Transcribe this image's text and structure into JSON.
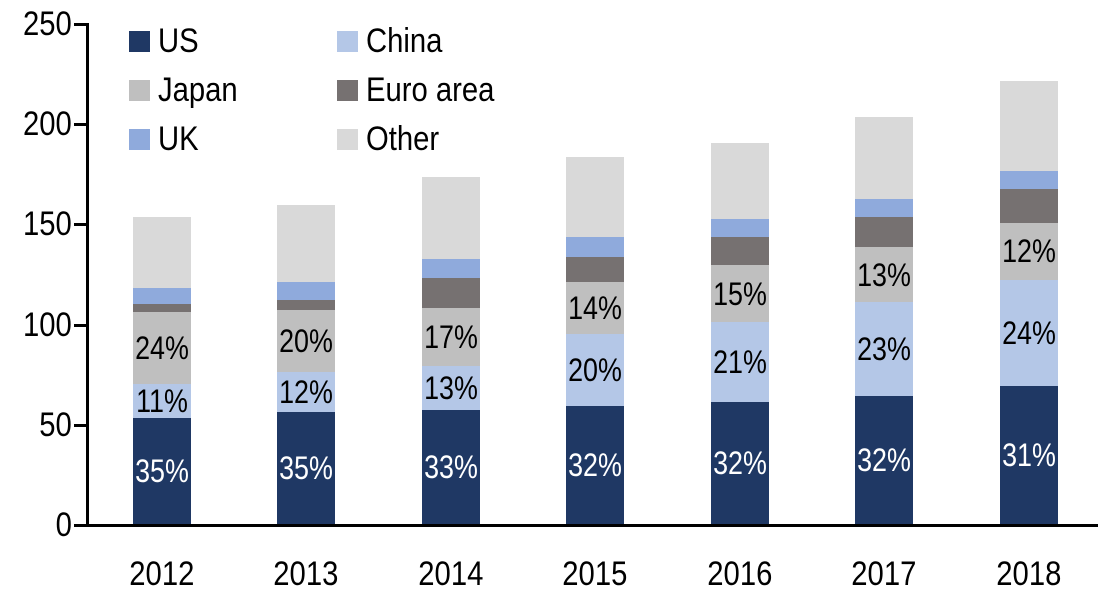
{
  "chart_data": {
    "type": "bar",
    "stacked": true,
    "title": "",
    "xlabel": "",
    "ylabel": "",
    "categories": [
      "2012",
      "2013",
      "2014",
      "2015",
      "2016",
      "2017",
      "2018"
    ],
    "series": [
      {
        "name": "US",
        "color": "#1f3864",
        "values": [
          53,
          56,
          57,
          59,
          61,
          64,
          69
        ],
        "labels": [
          "35%",
          "35%",
          "33%",
          "32%",
          "32%",
          "32%",
          "31%"
        ],
        "label_color": "#ffffff"
      },
      {
        "name": "China",
        "color": "#b4c7e7",
        "values": [
          17,
          20,
          22,
          36,
          40,
          47,
          53
        ],
        "labels": [
          "11%",
          "12%",
          "13%",
          "20%",
          "21%",
          "23%",
          "24%"
        ],
        "label_color": "#000000"
      },
      {
        "name": "Japan",
        "color": "#bfbfbf",
        "values": [
          36,
          31,
          29,
          26,
          28,
          27,
          28
        ],
        "labels": [
          "24%",
          "20%",
          "17%",
          "14%",
          "15%",
          "13%",
          "12%"
        ],
        "label_color": "#000000"
      },
      {
        "name": "Euro area",
        "color": "#767171",
        "values": [
          4,
          5,
          15,
          12,
          14,
          15,
          17
        ],
        "labels": null,
        "label_color": null
      },
      {
        "name": "UK",
        "color": "#8faadc",
        "values": [
          8,
          9,
          9,
          10,
          9,
          9,
          9
        ],
        "labels": null,
        "label_color": null
      },
      {
        "name": "Other",
        "color": "#d9d9d9",
        "values": [
          35,
          38,
          41,
          40,
          38,
          41,
          45
        ],
        "labels": null,
        "label_color": null
      }
    ],
    "totals": [
      153,
      159,
      173,
      183,
      190,
      203,
      221
    ],
    "ylim": [
      0,
      250
    ],
    "yticks": [
      0,
      50,
      100,
      150,
      200,
      250
    ],
    "grid": false,
    "legend_position": "top-left",
    "legend_columns": 2,
    "legend_order": [
      "US",
      "China",
      "Japan",
      "Euro area",
      "UK",
      "Other"
    ],
    "axis_color": "#000000",
    "background_color": "#ffffff"
  }
}
